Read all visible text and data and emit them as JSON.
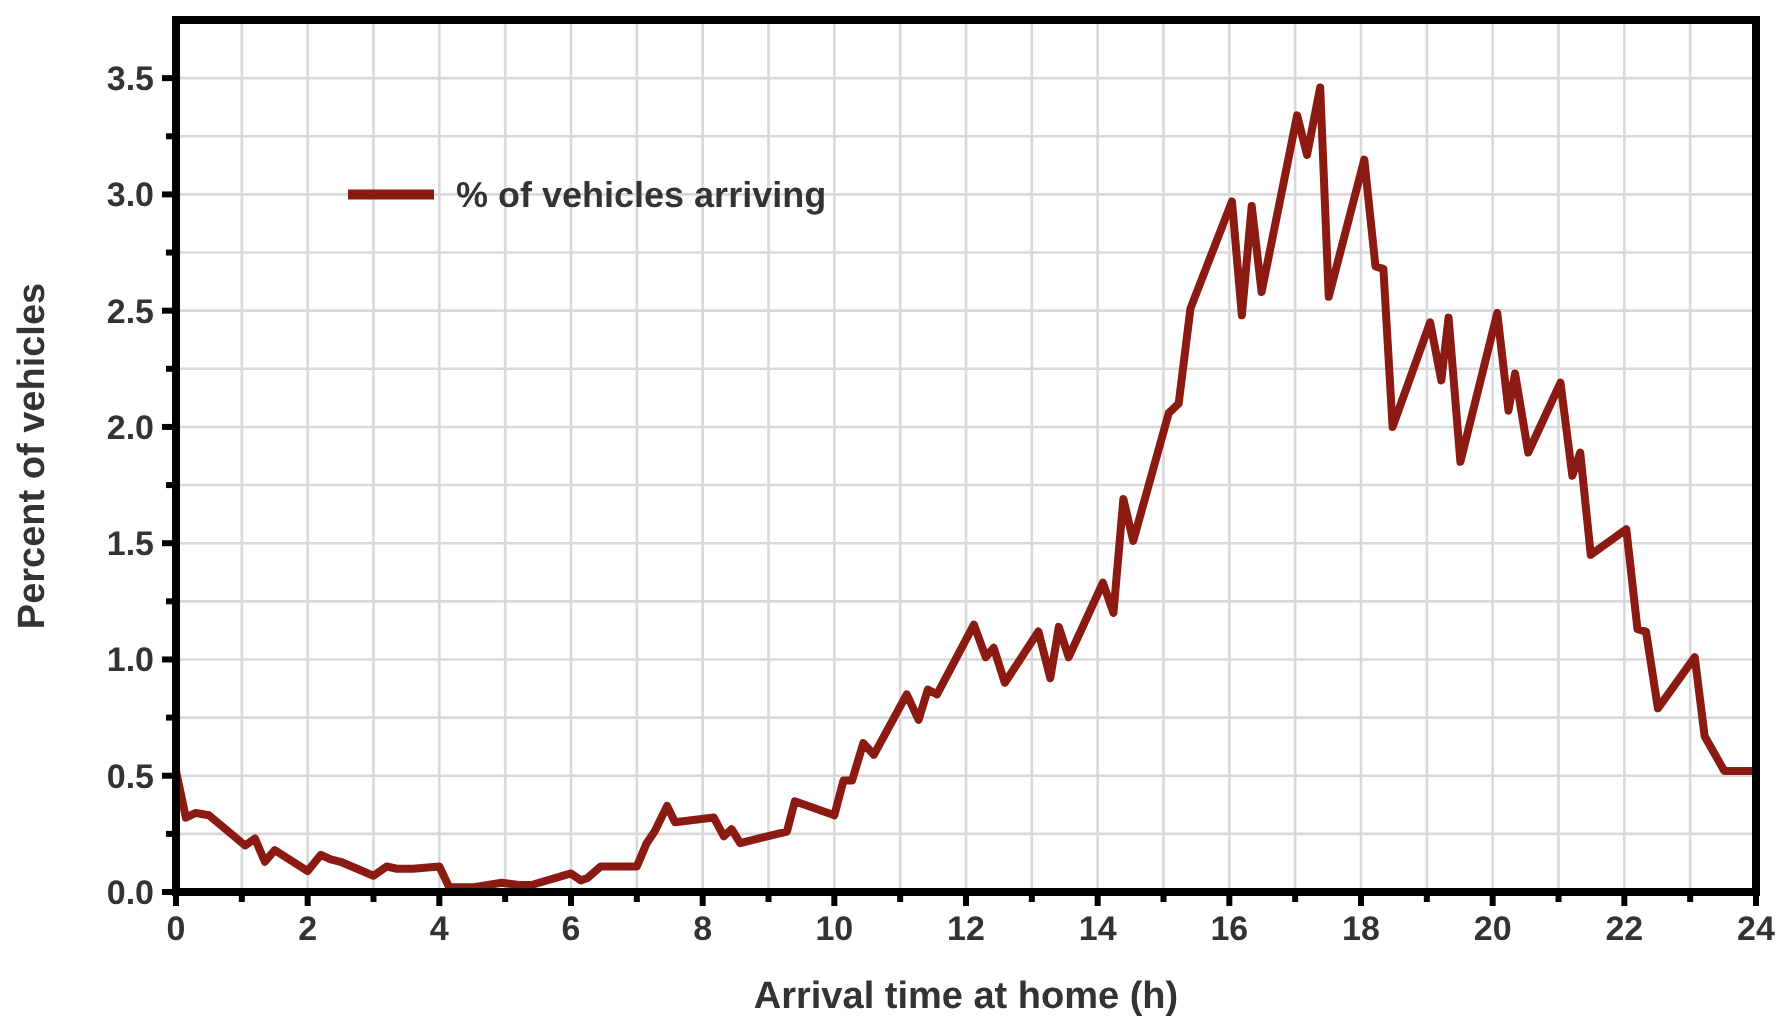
{
  "chart_data": {
    "type": "line",
    "xlabel": "Arrival time at home (h)",
    "ylabel": "Percent of vehicles",
    "xlim": [
      0,
      24
    ],
    "ylim": [
      0,
      3.75
    ],
    "xticks": [
      0,
      {
        "value": 1,
        "label": null
      },
      2,
      {
        "value": 3,
        "label": null
      },
      4,
      {
        "value": 5,
        "label": null
      },
      6,
      {
        "value": 7,
        "label": null
      },
      8,
      {
        "value": 9,
        "label": null
      },
      10,
      {
        "value": 11,
        "label": null
      },
      12,
      {
        "value": 13,
        "label": null
      },
      14,
      {
        "value": 15,
        "label": null
      },
      16,
      {
        "value": 17,
        "label": null
      },
      18,
      {
        "value": 19,
        "label": null
      },
      20,
      {
        "value": 21,
        "label": null
      },
      22,
      {
        "value": 23,
        "label": null
      },
      24
    ],
    "yticks": [
      {
        "value": 0,
        "label": "0.0"
      },
      {
        "value": 0.25,
        "label": null
      },
      0.5,
      {
        "value": 0.75,
        "label": null
      },
      {
        "value": 1,
        "label": "1.0"
      },
      {
        "value": 1.25,
        "label": null
      },
      1.5,
      {
        "value": 1.75,
        "label": null
      },
      {
        "value": 2,
        "label": "2.0"
      },
      {
        "value": 2.25,
        "label": null
      },
      2.5,
      {
        "value": 2.75,
        "label": null
      },
      {
        "value": 3,
        "label": "3.0"
      },
      {
        "value": 3.25,
        "label": null
      },
      3.5
    ],
    "grid": true,
    "legend": "top left",
    "marker": "none",
    "line_style": "solid",
    "x": [
      0,
      0.15,
      0.3,
      0.5,
      1.05,
      1.2,
      1.35,
      1.5,
      2.0,
      2.2,
      2.35,
      2.5,
      3.0,
      3.2,
      3.35,
      3.6,
      4.0,
      4.15,
      4.5,
      4.95,
      5.2,
      5.4,
      6.0,
      6.15,
      6.25,
      6.45,
      7.0,
      7.15,
      7.27,
      7.46,
      7.58,
      8.17,
      8.32,
      8.44,
      8.57,
      9.28,
      9.4,
      10.0,
      10.14,
      10.27,
      10.44,
      10.6,
      11.1,
      11.28,
      11.42,
      11.56,
      12.12,
      12.3,
      12.42,
      12.59,
      13.1,
      13.28,
      13.41,
      13.56,
      14.08,
      14.24,
      14.39,
      14.54,
      15.08,
      15.23,
      15.41,
      16.04,
      16.19,
      16.34,
      16.49,
      17.03,
      17.18,
      17.38,
      17.51,
      18.05,
      18.22,
      18.34,
      18.48,
      19.05,
      19.22,
      19.33,
      19.51,
      20.07,
      20.24,
      20.34,
      20.54,
      21.03,
      21.21,
      21.33,
      21.49,
      22.03,
      22.2,
      22.33,
      22.51,
      23.07,
      23.22,
      23.52,
      24
    ],
    "series": [
      {
        "name": "% of vehicles arriving",
        "color": "#8b1a12",
        "values": [
          0.52,
          0.32,
          0.34,
          0.33,
          0.2,
          0.23,
          0.13,
          0.18,
          0.09,
          0.16,
          0.14,
          0.13,
          0.07,
          0.11,
          0.1,
          0.1,
          0.11,
          0.02,
          0.02,
          0.04,
          0.03,
          0.03,
          0.08,
          0.05,
          0.06,
          0.11,
          0.11,
          0.21,
          0.26,
          0.37,
          0.3,
          0.32,
          0.24,
          0.27,
          0.21,
          0.26,
          0.39,
          0.33,
          0.48,
          0.48,
          0.64,
          0.59,
          0.85,
          0.74,
          0.87,
          0.85,
          1.15,
          1.01,
          1.05,
          0.9,
          1.12,
          0.92,
          1.14,
          1.01,
          1.33,
          1.2,
          1.69,
          1.51,
          2.06,
          2.1,
          2.51,
          2.97,
          2.48,
          2.95,
          2.58,
          3.34,
          3.17,
          3.46,
          2.56,
          3.15,
          2.69,
          2.68,
          2.0,
          2.45,
          2.2,
          2.47,
          1.85,
          2.49,
          2.07,
          2.23,
          1.89,
          2.19,
          1.79,
          1.89,
          1.45,
          1.56,
          1.13,
          1.12,
          0.79,
          1.01,
          0.67,
          0.52,
          0.52
        ]
      }
    ]
  }
}
